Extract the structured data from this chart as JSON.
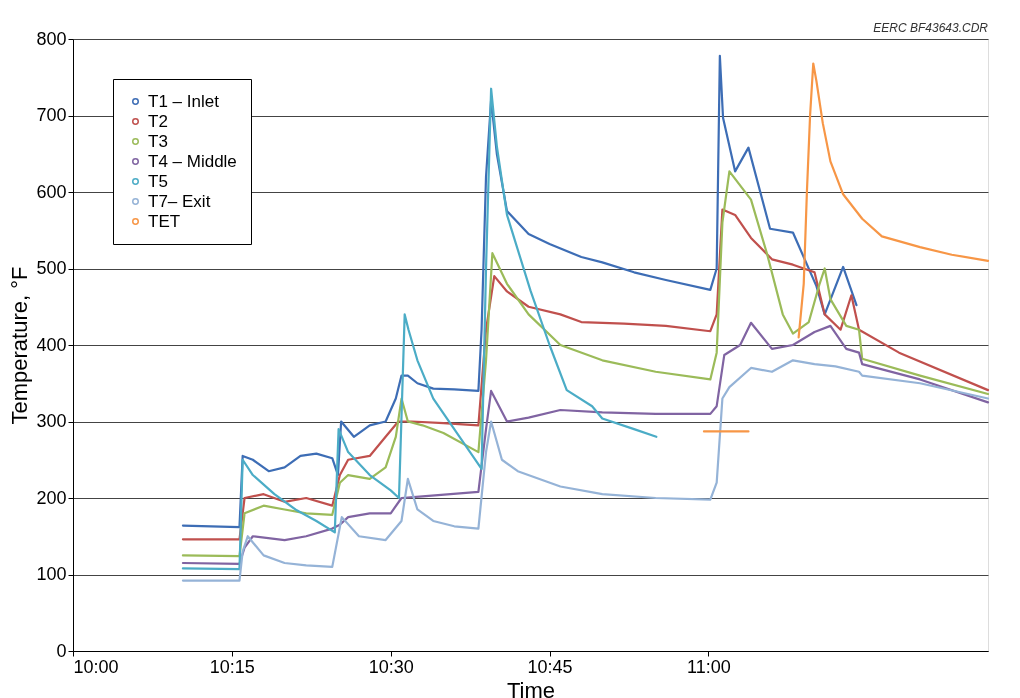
{
  "chart_data": {
    "type": "line",
    "xlabel": "Time",
    "ylabel": "Temperature, °F",
    "annotations": [
      "EERC BF43643.CDR"
    ],
    "xlim": [
      10.0,
      11.44
    ],
    "xticks": [
      {
        "value": 10,
        "label": "10:00"
      },
      {
        "value": 10.25,
        "label": "10:15"
      },
      {
        "value": 10.5,
        "label": "10:30"
      },
      {
        "value": 10.75,
        "label": "10:45"
      },
      {
        "value": 11,
        "label": "11:00"
      }
    ],
    "ylim": [
      0,
      800
    ],
    "yticks": [
      0,
      100,
      200,
      300,
      400,
      500,
      600,
      700,
      800
    ],
    "grid": "y",
    "legend": "top left",
    "line_style": "solid",
    "series": [
      {
        "name": "T1 – Inlet",
        "color": "#3d6db5",
        "x": [
          10.173,
          10.262,
          10.267,
          10.283,
          10.308,
          10.333,
          10.358,
          10.383,
          10.408,
          10.417,
          10.422,
          10.442,
          10.467,
          10.492,
          10.508,
          10.517,
          10.527,
          10.542,
          10.567,
          10.6,
          10.638,
          10.643,
          10.65,
          10.658,
          10.667,
          10.683,
          10.717,
          10.75,
          10.8,
          10.833,
          10.883,
          10.933,
          11.003,
          11.013,
          11.018,
          11.023,
          11.042,
          11.063,
          11.097,
          11.133,
          11.17,
          11.183,
          11.212,
          11.233
        ],
        "values": [
          164,
          162,
          255,
          250,
          235,
          240,
          255,
          258,
          252,
          230,
          300,
          280,
          295,
          300,
          330,
          360,
          360,
          350,
          343,
          342,
          340,
          420,
          620,
          720,
          650,
          575,
          545,
          532,
          515,
          508,
          495,
          485,
          472,
          500,
          778,
          697,
          627,
          658,
          552,
          547,
          477,
          440,
          502,
          452
        ]
      },
      {
        "name": "T2",
        "color": "#c0504d",
        "x": [
          10.173,
          10.262,
          10.27,
          10.3,
          10.333,
          10.367,
          10.408,
          10.42,
          10.433,
          10.467,
          10.492,
          10.512,
          10.533,
          10.583,
          10.638,
          10.65,
          10.663,
          10.683,
          10.717,
          10.767,
          10.8,
          10.867,
          10.933,
          11.003,
          11.013,
          11.022,
          11.042,
          11.067,
          11.1,
          11.133,
          11.167,
          11.183,
          11.208,
          11.225,
          11.237,
          11.3,
          11.44
        ],
        "values": [
          146,
          146,
          200,
          205,
          195,
          200,
          190,
          230,
          250,
          255,
          280,
          300,
          300,
          298,
          295,
          420,
          490,
          470,
          450,
          440,
          430,
          428,
          425,
          418,
          440,
          577,
          570,
          540,
          512,
          505,
          495,
          440,
          420,
          465,
          420,
          390,
          341
        ]
      },
      {
        "name": "T3",
        "color": "#9bbb59",
        "x": [
          10.173,
          10.262,
          10.27,
          10.3,
          10.333,
          10.367,
          10.408,
          10.42,
          10.433,
          10.467,
          10.492,
          10.508,
          10.517,
          10.527,
          10.55,
          10.583,
          10.638,
          10.65,
          10.66,
          10.683,
          10.717,
          10.767,
          10.833,
          10.917,
          11.003,
          11.013,
          11.022,
          11.033,
          11.067,
          11.092,
          11.117,
          11.133,
          11.158,
          11.175,
          11.183,
          11.192,
          11.217,
          11.237,
          11.242,
          11.333,
          11.44
        ],
        "values": [
          125,
          124,
          180,
          190,
          185,
          180,
          178,
          220,
          230,
          225,
          240,
          280,
          330,
          300,
          295,
          285,
          260,
          380,
          520,
          480,
          440,
          400,
          380,
          365,
          355,
          390,
          560,
          627,
          590,
          520,
          440,
          415,
          430,
          480,
          500,
          460,
          425,
          420,
          382,
          360,
          336
        ]
      },
      {
        "name": "T4 – Middle",
        "color": "#8064a2",
        "x": [
          10.173,
          10.262,
          10.27,
          10.283,
          10.333,
          10.367,
          10.408,
          10.42,
          10.433,
          10.467,
          10.5,
          10.517,
          10.55,
          10.638,
          10.65,
          10.658,
          10.683,
          10.717,
          10.767,
          10.833,
          10.917,
          11.003,
          11.013,
          11.025,
          11.05,
          11.067,
          11.1,
          11.133,
          11.167,
          11.192,
          11.217,
          11.237,
          11.242,
          11.333,
          11.44
        ],
        "values": [
          115,
          114,
          135,
          150,
          145,
          150,
          160,
          165,
          175,
          180,
          180,
          200,
          202,
          208,
          290,
          340,
          300,
          305,
          315,
          312,
          310,
          310,
          320,
          387,
          400,
          429,
          395,
          400,
          417,
          425,
          395,
          390,
          375,
          355,
          325
        ]
      },
      {
        "name": "T5",
        "color": "#4bacc6",
        "x": [
          10.173,
          10.262,
          10.267,
          10.283,
          10.317,
          10.35,
          10.383,
          10.412,
          10.418,
          10.433,
          10.467,
          10.5,
          10.513,
          10.522,
          10.528,
          10.542,
          10.567,
          10.6,
          10.643,
          10.65,
          10.658,
          10.667,
          10.683,
          10.72,
          10.75,
          10.777,
          10.817,
          10.833,
          10.883,
          10.918
        ],
        "values": [
          108,
          107,
          250,
          230,
          205,
          185,
          170,
          155,
          290,
          260,
          230,
          210,
          200,
          440,
          420,
          380,
          330,
          290,
          238,
          500,
          735,
          660,
          570,
          471,
          400,
          341,
          320,
          304,
          290,
          280
        ]
      },
      {
        "name": "T7– Exit",
        "color": "#95b3d7",
        "x": [
          10.173,
          10.262,
          10.267,
          10.275,
          10.3,
          10.333,
          10.367,
          10.408,
          10.423,
          10.45,
          10.492,
          10.517,
          10.527,
          10.542,
          10.567,
          10.6,
          10.638,
          10.65,
          10.658,
          10.675,
          10.7,
          10.767,
          10.833,
          10.917,
          11.003,
          11.013,
          11.022,
          11.033,
          11.067,
          11.1,
          11.133,
          11.167,
          11.2,
          11.237,
          11.242,
          11.333,
          11.44
        ],
        "values": [
          92,
          92,
          130,
          150,
          125,
          115,
          112,
          110,
          175,
          150,
          145,
          170,
          225,
          185,
          170,
          163,
          160,
          260,
          300,
          250,
          235,
          215,
          205,
          200,
          198,
          220,
          330,
          345,
          370,
          365,
          380,
          375,
          372,
          365,
          360,
          350,
          330
        ]
      },
      {
        "name": "TET",
        "color": "#f79646",
        "x": [
          10.993,
          11.017,
          11.05,
          11.063,
          11.1,
          11.142,
          11.15,
          11.155,
          11.16,
          11.165,
          11.17,
          11.18,
          11.192,
          11.212,
          11.242,
          11.273,
          11.333,
          11.383,
          11.44
        ],
        "values": [
          287,
          287,
          287,
          287,
          null,
          410,
          480,
          600,
          700,
          768,
          745,
          690,
          640,
          597,
          565,
          542,
          528,
          518,
          510
        ]
      }
    ]
  }
}
